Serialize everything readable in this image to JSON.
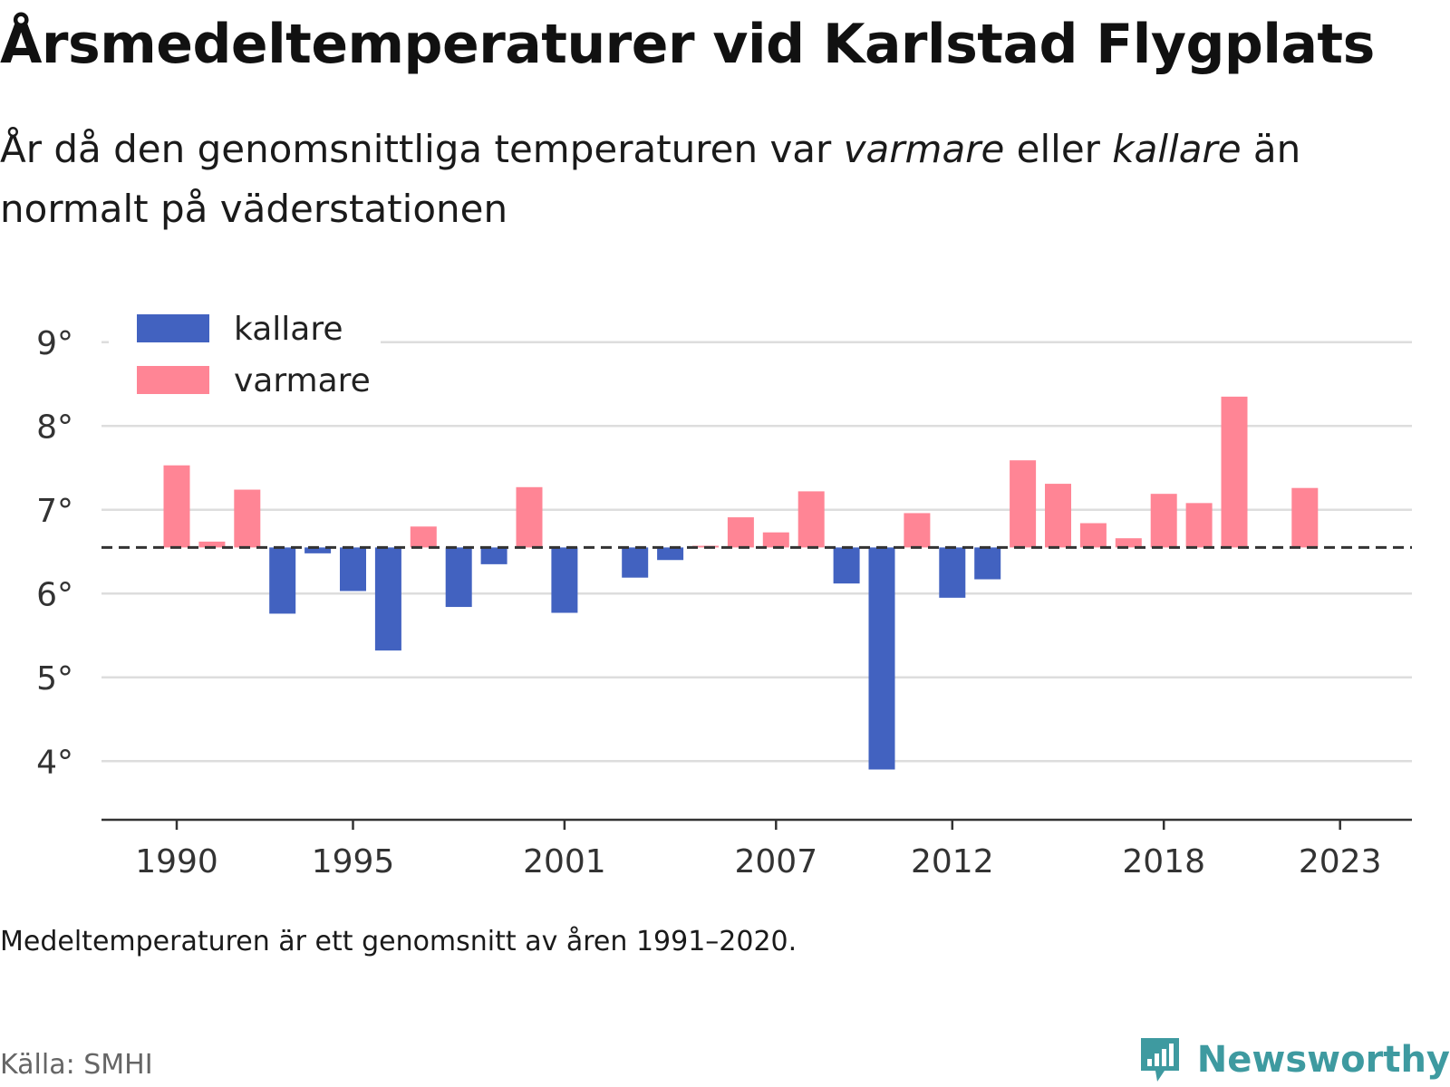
{
  "header": {
    "title": "Årsmedeltemperaturer vid Karlstad Flygplats",
    "subtitle_pre": "År då den genomsnittliga temperaturen var ",
    "subtitle_warm": "varmare",
    "subtitle_mid": " eller ",
    "subtitle_cold": "kallare",
    "subtitle_post": " än normalt på väderstationen"
  },
  "footer": {
    "note": "Medeltemperaturen är ett genomsnitt av åren 1991–2020.",
    "source": "Källa: SMHI",
    "brand": "Newsworthy"
  },
  "colors": {
    "kallare": "#4262c0",
    "varmare": "#ff8595",
    "brand": "#3e9aa0"
  },
  "chart_data": {
    "type": "bar",
    "baseline": 6.55,
    "ylim": [
      3.3,
      9.3
    ],
    "yticks": [
      4,
      5,
      6,
      7,
      8,
      9
    ],
    "ytick_labels": [
      "4°",
      "5°",
      "6°",
      "7°",
      "8°",
      "9°"
    ],
    "xticks": [
      1990,
      1995,
      2001,
      2007,
      2012,
      2018,
      2023
    ],
    "xtick_labels": [
      "1990",
      "1995",
      "2001",
      "2007",
      "2012",
      "2018",
      "2023"
    ],
    "grid": true,
    "legend": {
      "position": "top-left",
      "entries": [
        {
          "key": "kallare",
          "label": "kallare"
        },
        {
          "key": "varmare",
          "label": "varmare"
        }
      ]
    },
    "x": [
      1990,
      1991,
      1992,
      1993,
      1994,
      1995,
      1996,
      1997,
      1998,
      1999,
      2000,
      2001,
      2002,
      2003,
      2004,
      2005,
      2006,
      2007,
      2008,
      2009,
      2010,
      2011,
      2012,
      2013,
      2014,
      2015,
      2016,
      2017,
      2018,
      2019,
      2020,
      2021,
      2022
    ],
    "values": [
      7.53,
      6.62,
      7.24,
      5.76,
      6.48,
      6.03,
      5.32,
      6.8,
      5.84,
      6.35,
      7.27,
      5.77,
      null,
      6.19,
      6.4,
      6.57,
      6.91,
      6.73,
      7.22,
      6.12,
      3.9,
      6.96,
      5.95,
      6.17,
      7.59,
      7.31,
      6.84,
      6.66,
      7.19,
      7.08,
      8.35,
      null,
      7.26
    ]
  }
}
